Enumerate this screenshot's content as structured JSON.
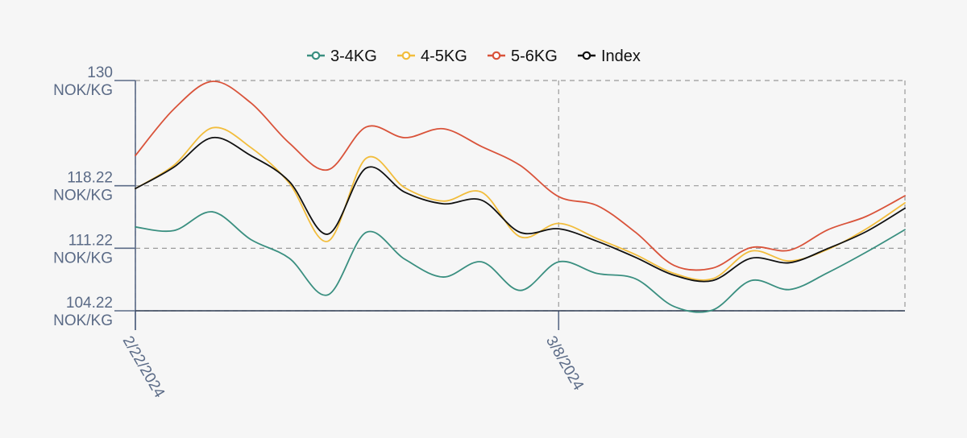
{
  "chart_data": {
    "type": "line",
    "title": "",
    "xlabel": "",
    "ylabel": "",
    "grid": true,
    "legend_position": "top-center",
    "ylim": [
      104.22,
      130
    ],
    "y_ticks": [
      {
        "value": 130,
        "line1": "130",
        "line2": "NOK/KG"
      },
      {
        "value": 118.22,
        "line1": "118.22",
        "line2": "NOK/KG"
      },
      {
        "value": 111.22,
        "line1": "111.22",
        "line2": "NOK/KG"
      },
      {
        "value": 104.22,
        "line1": "104.22",
        "line2": "NOK/KG"
      }
    ],
    "x_ticks": [
      {
        "index": 0,
        "label": "2/22/2024"
      },
      {
        "index": 11,
        "label": "3/8/2024"
      }
    ],
    "x_count": 21,
    "series": [
      {
        "name": "3-4KG",
        "color": "#3a8f80",
        "values": [
          113.6,
          113.2,
          115.3,
          112.2,
          110.1,
          106.0,
          113.0,
          110.0,
          108.0,
          109.7,
          106.5,
          109.7,
          108.4,
          107.8,
          104.7,
          104.3,
          107.6,
          106.6,
          108.5,
          110.8,
          113.3
        ]
      },
      {
        "name": "4-5KG",
        "color": "#f2bd3c",
        "values": [
          117.9,
          120.5,
          124.7,
          122.5,
          118.5,
          112.0,
          121.3,
          118.0,
          116.5,
          117.5,
          112.5,
          114.0,
          112.3,
          110.5,
          108.4,
          107.8,
          110.9,
          109.8,
          111.1,
          113.4,
          116.3
        ]
      },
      {
        "name": "5-6KG",
        "color": "#d9533a",
        "values": [
          121.6,
          126.8,
          129.9,
          127.5,
          123.0,
          120.0,
          124.8,
          123.6,
          124.6,
          122.6,
          120.5,
          117.0,
          116.0,
          113.0,
          109.3,
          109.0,
          111.3,
          111.0,
          113.3,
          114.8,
          117.1
        ]
      },
      {
        "name": "Index",
        "color": "#111111",
        "values": [
          117.9,
          120.3,
          123.6,
          121.6,
          118.7,
          112.8,
          120.2,
          117.5,
          116.2,
          116.6,
          113.0,
          113.4,
          112.0,
          110.2,
          108.2,
          107.6,
          110.1,
          109.6,
          111.2,
          113.1,
          115.7
        ]
      }
    ]
  }
}
